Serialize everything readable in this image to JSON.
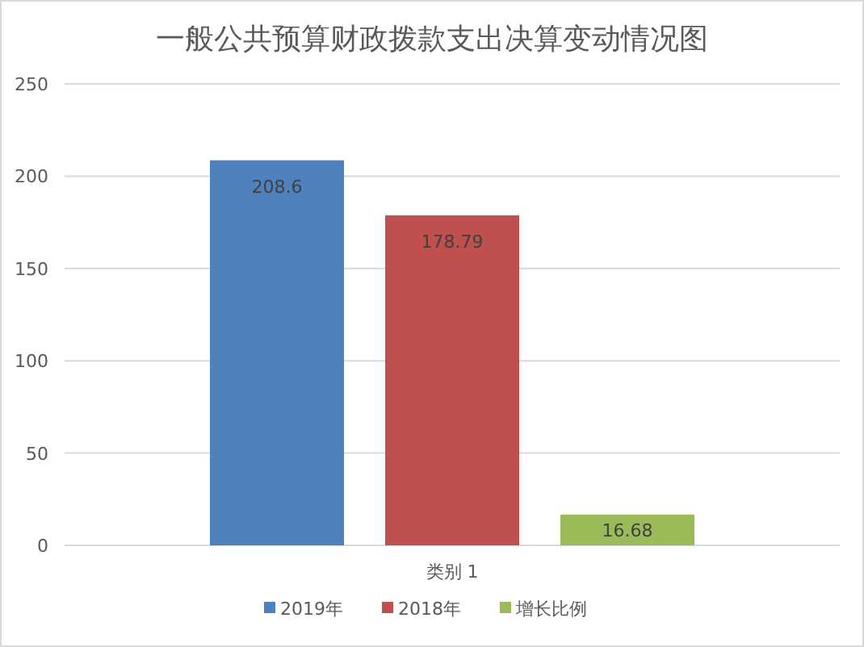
{
  "chart_data": {
    "type": "bar",
    "title": "一般公共预算财政拨款支出决算变动情况图",
    "categories": [
      "类别 1"
    ],
    "series": [
      {
        "name": "2019年",
        "color": "#4f81bd",
        "values": [
          208.6
        ]
      },
      {
        "name": "2018年",
        "color": "#c0504d",
        "values": [
          178.79
        ]
      },
      {
        "name": "增长比例",
        "color": "#9bbb59",
        "values": [
          16.68
        ]
      }
    ],
    "ylim": [
      0,
      250
    ],
    "yticks": [
      0,
      50,
      100,
      150,
      200,
      250
    ],
    "grid": "y",
    "legend": "bottom",
    "data_labels": true
  }
}
